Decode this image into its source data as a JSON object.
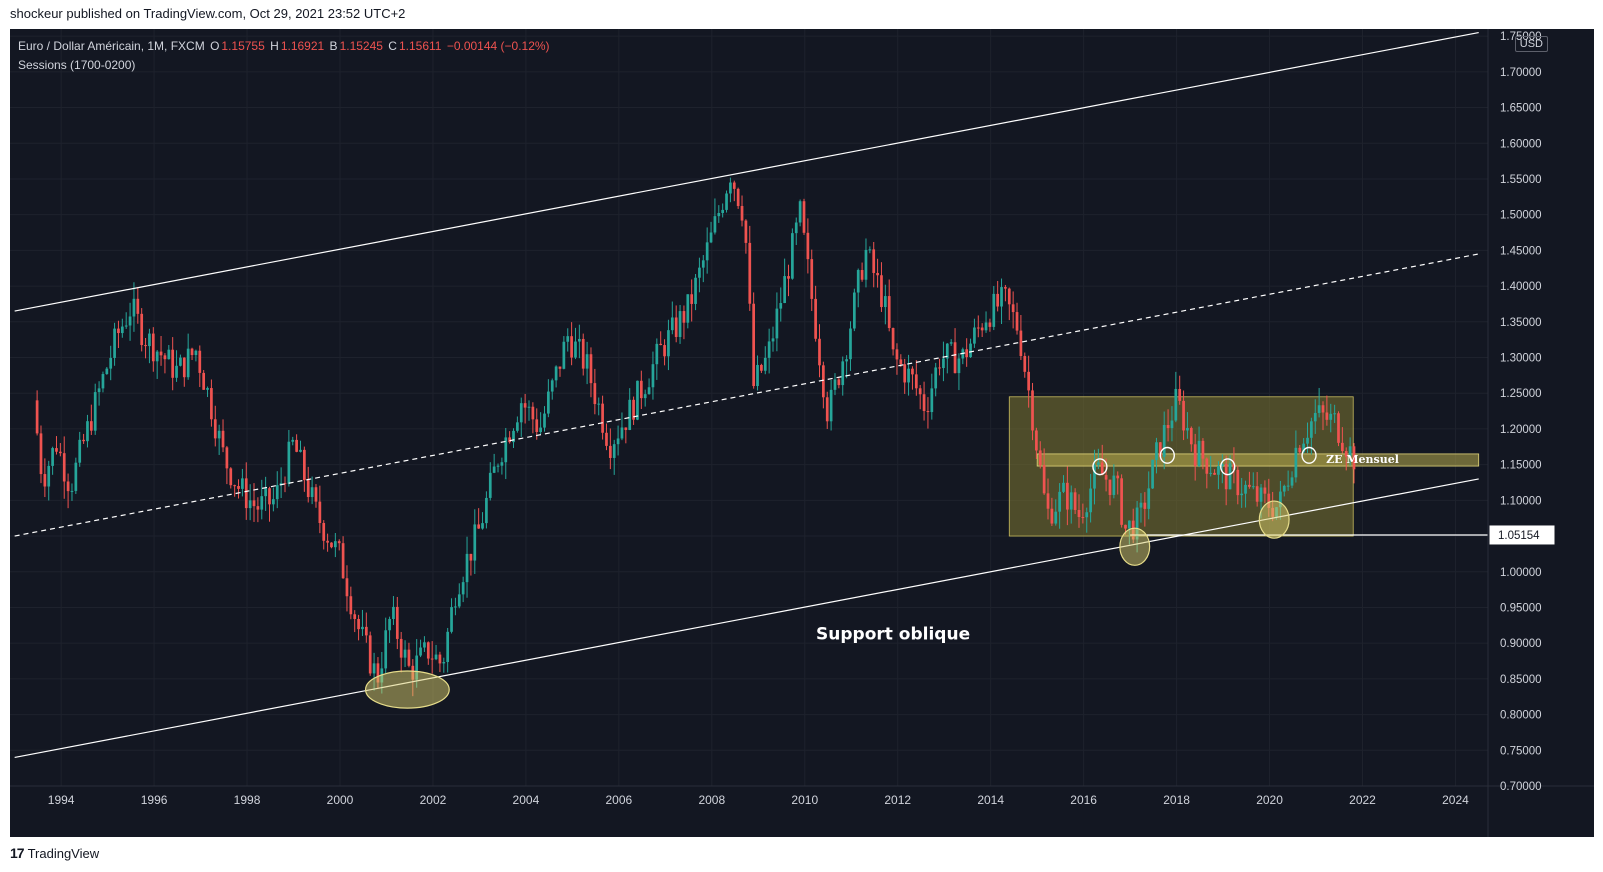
{
  "header": {
    "published_by": "shockeur published on TradingView.com, Oct 29, 2021 23:52 UTC+2"
  },
  "legend": {
    "symbol": "Euro / Dollar Américain, 1M, FXCM",
    "o_label": "O",
    "o_value": "1.15755",
    "h_label": "H",
    "h_value": "1.16921",
    "b_label": "B",
    "b_value": "1.15245",
    "c_label": "C",
    "c_value": "1.15611",
    "change": "−0.00144 (−0.12%)",
    "sessions": "Sessions (1700-0200)"
  },
  "currency": "USD",
  "footer": {
    "logo_mark": "17",
    "brand": "TradingView"
  },
  "colors": {
    "background": "#131722",
    "up": "#26a69a",
    "down": "#ef5350",
    "zone": "#807832",
    "grid": "#1e222d",
    "text": "#d1d4dc"
  },
  "chart_data": {
    "type": "candlestick",
    "x_unit": "year",
    "xlim": [
      1992.9,
      2024.7
    ],
    "ylim": [
      0.7,
      1.76
    ],
    "x_ticks": [
      "1994",
      "1996",
      "1998",
      "2000",
      "2002",
      "2004",
      "2006",
      "2008",
      "2010",
      "2012",
      "2014",
      "2016",
      "2018",
      "2020",
      "2022",
      "2024"
    ],
    "y_ticks": [
      "1.75000",
      "1.70000",
      "1.65000",
      "1.60000",
      "1.55000",
      "1.50000",
      "1.45000",
      "1.40000",
      "1.35000",
      "1.30000",
      "1.25000",
      "1.20000",
      "1.15000",
      "1.10000",
      "1.05000",
      "1.00000",
      "0.95000",
      "0.90000",
      "0.85000",
      "0.80000",
      "0.75000",
      "0.70000"
    ],
    "price_anchors": [
      [
        1993.4,
        1.24
      ],
      [
        1993.6,
        1.13
      ],
      [
        1993.9,
        1.18
      ],
      [
        1994.2,
        1.12
      ],
      [
        1994.9,
        1.27
      ],
      [
        1995.2,
        1.33
      ],
      [
        1995.5,
        1.37
      ],
      [
        1995.8,
        1.33
      ],
      [
        1996.5,
        1.28
      ],
      [
        1996.9,
        1.31
      ],
      [
        1997.2,
        1.24
      ],
      [
        1997.5,
        1.16
      ],
      [
        1997.8,
        1.12
      ],
      [
        1998.2,
        1.09
      ],
      [
        1998.6,
        1.1
      ],
      [
        1999.0,
        1.18
      ],
      [
        1999.5,
        1.08
      ],
      [
        2000.0,
        1.02
      ],
      [
        2000.4,
        0.92
      ],
      [
        2000.8,
        0.85
      ],
      [
        2001.1,
        0.94
      ],
      [
        2001.5,
        0.86
      ],
      [
        2001.9,
        0.89
      ],
      [
        2002.2,
        0.87
      ],
      [
        2002.5,
        0.98
      ],
      [
        2003.0,
        1.06
      ],
      [
        2003.4,
        1.16
      ],
      [
        2003.9,
        1.24
      ],
      [
        2004.3,
        1.2
      ],
      [
        2004.9,
        1.33
      ],
      [
        2005.3,
        1.29
      ],
      [
        2005.8,
        1.18
      ],
      [
        2006.2,
        1.22
      ],
      [
        2006.6,
        1.27
      ],
      [
        2006.9,
        1.31
      ],
      [
        2007.5,
        1.37
      ],
      [
        2008.0,
        1.47
      ],
      [
        2008.4,
        1.56
      ],
      [
        2008.7,
        1.5
      ],
      [
        2008.9,
        1.26
      ],
      [
        2009.2,
        1.3
      ],
      [
        2009.9,
        1.5
      ],
      [
        2010.2,
        1.36
      ],
      [
        2010.5,
        1.22
      ],
      [
        2010.9,
        1.32
      ],
      [
        2011.3,
        1.45
      ],
      [
        2011.7,
        1.38
      ],
      [
        2011.9,
        1.3
      ],
      [
        2012.3,
        1.27
      ],
      [
        2012.6,
        1.23
      ],
      [
        2012.9,
        1.3
      ],
      [
        2013.4,
        1.3
      ],
      [
        2013.9,
        1.36
      ],
      [
        2014.3,
        1.38
      ],
      [
        2014.6,
        1.34
      ],
      [
        2014.9,
        1.22
      ],
      [
        2015.2,
        1.08
      ],
      [
        2015.6,
        1.11
      ],
      [
        2015.9,
        1.08
      ],
      [
        2016.3,
        1.14
      ],
      [
        2016.7,
        1.12
      ],
      [
        2016.9,
        1.06
      ],
      [
        2017.2,
        1.07
      ],
      [
        2017.6,
        1.17
      ],
      [
        2018.0,
        1.24
      ],
      [
        2018.4,
        1.17
      ],
      [
        2018.9,
        1.14
      ],
      [
        2019.4,
        1.12
      ],
      [
        2019.8,
        1.1
      ],
      [
        2020.2,
        1.09
      ],
      [
        2020.6,
        1.18
      ],
      [
        2021.0,
        1.22
      ],
      [
        2021.4,
        1.21
      ],
      [
        2021.8,
        1.16
      ]
    ],
    "annotations": [
      {
        "text": "Support oblique"
      },
      {
        "text": "ZE Mensuel"
      },
      {
        "text": "1.05154"
      }
    ],
    "lines": {
      "channel_top": [
        [
          1993.0,
          1.365
        ],
        [
          2024.5,
          1.755
        ]
      ],
      "channel_mid": [
        [
          1993.0,
          1.05
        ],
        [
          2024.5,
          1.445
        ]
      ],
      "support": [
        [
          1993.0,
          0.74
        ],
        [
          2024.5,
          1.13
        ]
      ],
      "horizontal": [
        [
          2017.0,
          1.0515
        ],
        [
          2024.7,
          1.0515
        ]
      ]
    },
    "zones": {
      "rectangle": [
        [
          2014.4,
          1.05
        ],
        [
          2021.8,
          1.245
        ]
      ],
      "ze_band": [
        [
          2015.0,
          1.148
        ],
        [
          2024.5,
          1.165
        ]
      ]
    },
    "highlights": [
      {
        "center": [
          2001.45,
          0.835
        ],
        "radius": [
          0.9,
          0.026
        ]
      },
      {
        "center": [
          2017.1,
          1.035
        ],
        "radius": [
          0.32,
          0.026
        ]
      },
      {
        "center": [
          2020.1,
          1.073
        ],
        "radius": [
          0.32,
          0.026
        ]
      },
      {
        "center": [
          2016.35,
          1.147
        ],
        "radius": [
          0.15,
          0.011
        ]
      },
      {
        "center": [
          2017.8,
          1.163
        ],
        "radius": [
          0.15,
          0.011
        ]
      },
      {
        "center": [
          2019.1,
          1.147
        ],
        "radius": [
          0.15,
          0.011
        ]
      },
      {
        "center": [
          2020.85,
          1.163
        ],
        "radius": [
          0.15,
          0.011
        ]
      }
    ]
  }
}
